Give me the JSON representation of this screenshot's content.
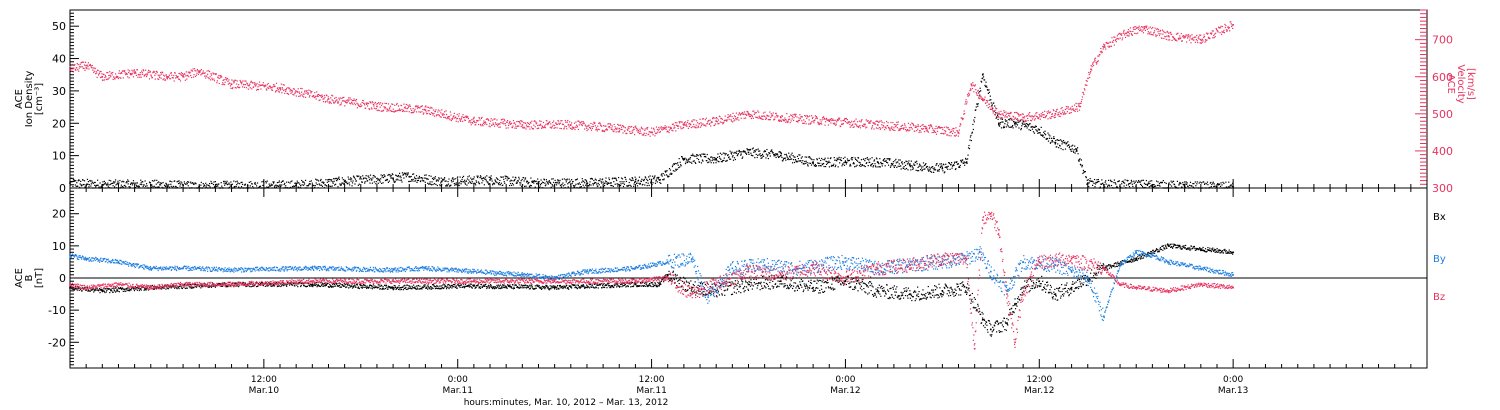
{
  "colors": {
    "black": "#000000",
    "red": "#e8335f",
    "blue": "#1f7fe0"
  },
  "time_axis": {
    "start": "2012-03-10 00:00",
    "end": "2012-03-13 12:00",
    "ticks": [
      {
        "time": "12:00",
        "date": "Mar.10",
        "hours": 12
      },
      {
        "time": "0:00",
        "date": "Mar.11",
        "hours": 24
      },
      {
        "time": "12:00",
        "date": "Mar.11",
        "hours": 36
      },
      {
        "time": "0:00",
        "date": "Mar.12",
        "hours": 48
      },
      {
        "time": "12:00",
        "date": "Mar.12",
        "hours": 60
      },
      {
        "time": "0:00",
        "date": "Mar.13",
        "hours": 72
      }
    ],
    "label": "hours:minutes, Mar. 10, 2012 – Mar. 13, 2012"
  },
  "chart_data": [
    {
      "type": "scatter",
      "panel": "plasma",
      "ylabel_left": [
        "ACE",
        "Ion Density",
        "[cm⁻³]"
      ],
      "ylabel_right": [
        "ACE",
        "Velocity",
        "[km/s]"
      ],
      "ylim_left": [
        0,
        55
      ],
      "ylim_right": [
        300,
        780
      ],
      "yticks_left": [
        "0",
        "10",
        "20",
        "30",
        "40",
        "50"
      ],
      "yticks_right": [
        "300",
        "400",
        "500",
        "600",
        "700"
      ],
      "series": [
        {
          "key": "density",
          "axis": "left",
          "color": "#000000",
          "x_hours": [
            0,
            2,
            5,
            8,
            11,
            14,
            17,
            20,
            21,
            23,
            26,
            29,
            32,
            35,
            36.5,
            38,
            40,
            42,
            44,
            46,
            48,
            50,
            52,
            54,
            55.5,
            56.5,
            57.5,
            58.5,
            60,
            61,
            62.3,
            63,
            64,
            67,
            69,
            72
          ],
          "values": [
            1.5,
            1,
            1,
            0.5,
            0.7,
            0.8,
            2,
            3,
            3.5,
            2,
            2.5,
            1.5,
            1.5,
            2,
            2.5,
            9,
            9,
            11,
            10,
            8,
            8,
            8,
            7,
            6,
            8,
            35,
            20,
            20,
            18,
            14,
            12,
            1.5,
            1,
            1,
            0.5,
            0.3
          ]
        },
        {
          "key": "velocity",
          "axis": "right",
          "color": "#e8335f",
          "x_hours": [
            0,
            1,
            2,
            4,
            6,
            7,
            8,
            10,
            13,
            16,
            19,
            22,
            25,
            28,
            31,
            34,
            36,
            38,
            40,
            42,
            44,
            47,
            50,
            53,
            55,
            55.8,
            56.5,
            57.5,
            59,
            61,
            62.5,
            63.2,
            64,
            65.5,
            66.5,
            68,
            70,
            72
          ],
          "values": [
            620,
            630,
            600,
            610,
            600,
            600,
            615,
            580,
            570,
            540,
            520,
            510,
            480,
            470,
            470,
            460,
            450,
            470,
            480,
            500,
            490,
            480,
            470,
            460,
            450,
            580,
            540,
            500,
            490,
            500,
            520,
            620,
            680,
            720,
            730,
            710,
            700,
            740
          ]
        }
      ]
    },
    {
      "type": "scatter",
      "panel": "imf",
      "ylabel_left": [
        "ACE",
        "B",
        "[nT]"
      ],
      "ylim": [
        -28,
        28
      ],
      "yticks": [
        "-20",
        "-10",
        "0",
        "10",
        "20"
      ],
      "legend": [
        "Bx",
        "By",
        "Bz"
      ],
      "series": [
        {
          "key": "Bx",
          "color": "#000000",
          "x_hours": [
            0,
            2,
            5,
            10,
            15,
            20,
            25,
            30,
            35,
            36.5,
            37,
            38.5,
            40,
            42,
            44,
            46,
            48,
            50,
            52,
            54,
            55.5,
            56.5,
            57,
            58,
            58.5,
            59,
            60,
            61,
            62,
            63,
            64,
            66,
            68,
            70,
            72
          ],
          "values": [
            -3,
            -4,
            -3,
            -2,
            -2,
            -3,
            -2.5,
            -3,
            -2,
            -2,
            1,
            -3,
            -4,
            -2,
            -1,
            -3,
            -1,
            -4,
            -5,
            -4,
            -3,
            -13,
            -16,
            -14,
            -8,
            -3,
            -1,
            -5,
            -3,
            0,
            3,
            6,
            10,
            9,
            8
          ]
        },
        {
          "key": "By",
          "color": "#1f7fe0",
          "x_hours": [
            0,
            1,
            3,
            5,
            7,
            10,
            15,
            20,
            22,
            25,
            28,
            30,
            32,
            35,
            37,
            38.5,
            39.5,
            41,
            43,
            45,
            48,
            50,
            52,
            54,
            55.5,
            56.3,
            57,
            58,
            59,
            61,
            62,
            63,
            64,
            65,
            66,
            67,
            68,
            70,
            72
          ],
          "values": [
            7,
            6,
            5,
            3,
            3,
            2.5,
            3,
            2.5,
            3,
            2,
            1,
            0,
            2,
            3,
            5,
            6,
            -6,
            3,
            4,
            3,
            5,
            3,
            4,
            5,
            6,
            8,
            2,
            -4,
            5,
            4,
            2,
            0,
            -12,
            4,
            8,
            7,
            5,
            3,
            1
          ]
        },
        {
          "key": "Bz",
          "color": "#e8335f",
          "x_hours": [
            0,
            1,
            3,
            5,
            7,
            10,
            15,
            20,
            25,
            30,
            35,
            37,
            38.5,
            40,
            42,
            44,
            46,
            48,
            50,
            52,
            54,
            55.5,
            56,
            56.5,
            57,
            57.5,
            58,
            58.5,
            59,
            60,
            62,
            64,
            65,
            66,
            68,
            70,
            72
          ],
          "values": [
            -2,
            -3,
            -2,
            -3,
            -2,
            -2,
            -1,
            -1,
            -1,
            -1,
            -1,
            0,
            -5,
            -2,
            2,
            1,
            3,
            0,
            3,
            4,
            6,
            6,
            -22,
            18,
            20,
            15,
            -5,
            -20,
            -5,
            5,
            6,
            3,
            -2,
            -3,
            -4,
            -2,
            -3
          ]
        }
      ]
    }
  ]
}
